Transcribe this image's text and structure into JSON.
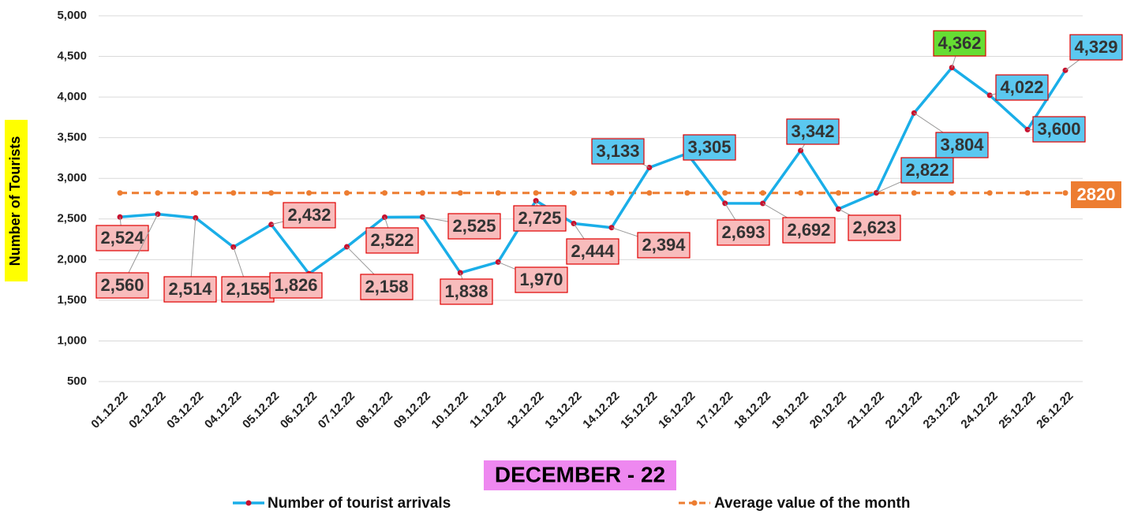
{
  "chart_data": {
    "type": "line",
    "y_axis_label": "Number of Tourists",
    "x_axis_label": "DECEMBER - 22",
    "categories": [
      "01.12.22",
      "02.12.22",
      "03.12.22",
      "04.12.22",
      "05.12.22",
      "06.12.22",
      "07.12.22",
      "08.12.22",
      "09.12.22",
      "10.12.22",
      "11.12.22",
      "12.12.22",
      "13.12.22",
      "14.12.22",
      "15.12.22",
      "16.12.22",
      "17.12.22",
      "18.12.22",
      "19.12.22",
      "20.12.22",
      "21.12.22",
      "22.12.22",
      "23.12.22",
      "24.12.22",
      "25.12.22",
      "26.12.22"
    ],
    "series": [
      {
        "name": "Number of tourist arrivals",
        "color": "#1aaee8",
        "marker_color": "#c8102e",
        "values": [
          2524,
          2560,
          2514,
          2155,
          2432,
          1826,
          2158,
          2522,
          2525,
          1838,
          1970,
          2725,
          2444,
          2394,
          3133,
          3305,
          2693,
          2692,
          3342,
          2623,
          2822,
          3804,
          4362,
          4022,
          3600,
          4329
        ],
        "value_labels": [
          "2,524",
          "2,560",
          "2,514",
          "2,155",
          "2,432",
          "1,826",
          "2,158",
          "2,522",
          "2,525",
          "1,838",
          "1,970",
          "2,725",
          "2,444",
          "2,394",
          "3,133",
          "3,305",
          "2,693",
          "2,692",
          "3,342",
          "2,623",
          "2,822",
          "3,804",
          "4,362",
          "4,022",
          "3,600",
          "4,329"
        ]
      },
      {
        "name": "Average value of the month",
        "color": "#ed7d31",
        "values": [
          2820,
          2820,
          2820,
          2820,
          2820,
          2820,
          2820,
          2820,
          2820,
          2820,
          2820,
          2820,
          2820,
          2820,
          2820,
          2820,
          2820,
          2820,
          2820,
          2820,
          2820,
          2820,
          2820,
          2820,
          2820,
          2820
        ]
      }
    ],
    "ylim": [
      500,
      5000
    ],
    "yticks": [
      500,
      {
        "value": 1000,
        "label": "1,000"
      },
      {
        "value": 1500,
        "label": "1,500"
      },
      {
        "value": 2000,
        "label": "2,000"
      },
      {
        "value": 2500,
        "label": "2,500"
      },
      {
        "value": 3000,
        "label": "3,000"
      },
      {
        "value": 3500,
        "label": "3,500"
      },
      {
        "value": 4000,
        "label": "4,000"
      },
      {
        "value": 4500,
        "label": "4,500"
      },
      {
        "value": 5000,
        "label": "5,000"
      }
    ],
    "grid": true
  }
}
